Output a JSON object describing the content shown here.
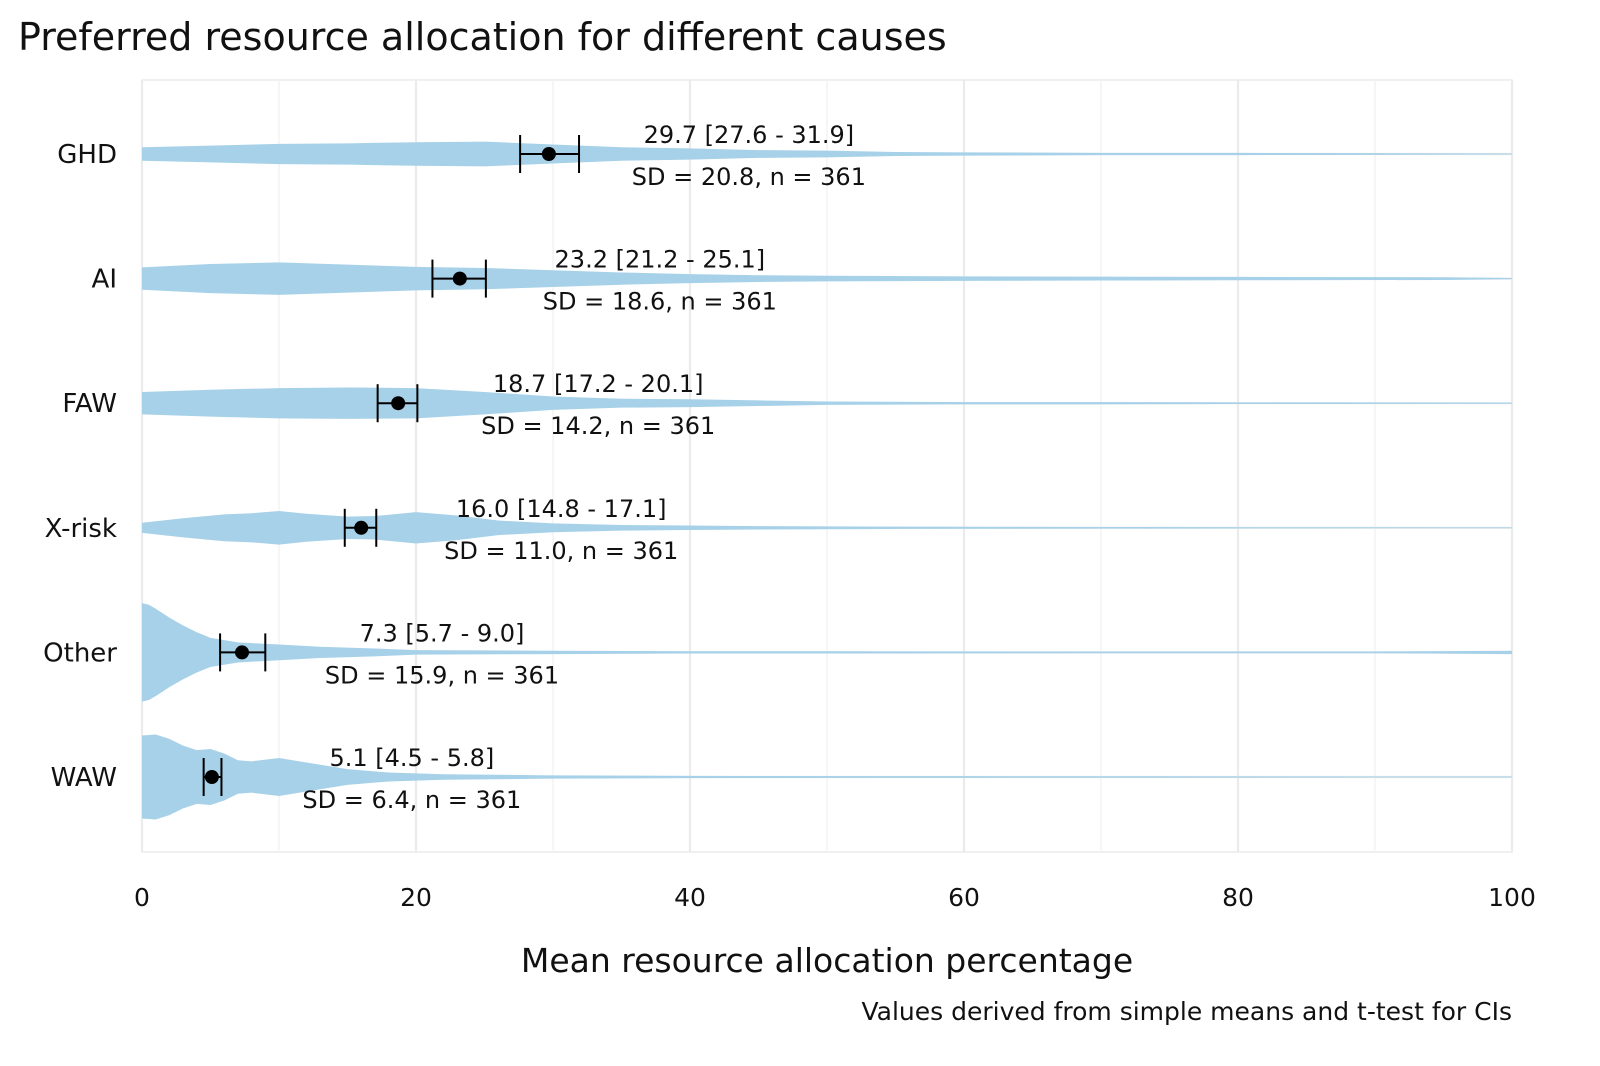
{
  "chart_data": {
    "type": "violin",
    "title": "Preferred resource allocation for different causes",
    "xlabel": "Mean resource allocation percentage",
    "ylabel": "",
    "caption": "Values derived from simple means and t-test for CIs",
    "xlim": [
      0,
      100
    ],
    "xticks": [
      0,
      20,
      40,
      60,
      80,
      100
    ],
    "grid": true,
    "colors": {
      "violin": "#a6d1e8",
      "point": "#000000",
      "grid": "#ebebeb"
    },
    "series": [
      {
        "name": "GHD",
        "mean": 29.7,
        "ci": [
          27.6,
          31.9
        ],
        "sd": 20.8,
        "n": 361,
        "label_ci": "29.7 [27.6 - 31.9]",
        "label_sd": "SD = 20.8, n = 361",
        "density": [
          [
            0,
            0.12
          ],
          [
            5,
            0.15
          ],
          [
            10,
            0.18
          ],
          [
            15,
            0.19
          ],
          [
            20,
            0.21
          ],
          [
            25,
            0.22
          ],
          [
            30,
            0.17
          ],
          [
            35,
            0.12
          ],
          [
            40,
            0.1
          ],
          [
            45,
            0.07
          ],
          [
            50,
            0.06
          ],
          [
            55,
            0.035
          ],
          [
            60,
            0.03
          ],
          [
            70,
            0.02
          ],
          [
            80,
            0.02
          ],
          [
            90,
            0.015
          ],
          [
            100,
            0.01
          ]
        ]
      },
      {
        "name": "AI",
        "mean": 23.2,
        "ci": [
          21.2,
          25.1
        ],
        "sd": 18.6,
        "n": 361,
        "label_ci": "23.2 [21.2 - 25.1]",
        "label_sd": "SD = 18.6, n = 361",
        "density": [
          [
            0,
            0.2
          ],
          [
            5,
            0.26
          ],
          [
            10,
            0.29
          ],
          [
            15,
            0.25
          ],
          [
            20,
            0.21
          ],
          [
            25,
            0.19
          ],
          [
            30,
            0.15
          ],
          [
            35,
            0.11
          ],
          [
            40,
            0.08
          ],
          [
            45,
            0.06
          ],
          [
            50,
            0.05
          ],
          [
            60,
            0.04
          ],
          [
            70,
            0.035
          ],
          [
            80,
            0.03
          ],
          [
            95,
            0.025
          ],
          [
            100,
            0.01
          ]
        ]
      },
      {
        "name": "FAW",
        "mean": 18.7,
        "ci": [
          17.2,
          20.1
        ],
        "sd": 14.2,
        "n": 361,
        "label_ci": "18.7 [17.2 - 20.1]",
        "label_sd": "SD = 14.2, n = 361",
        "density": [
          [
            0,
            0.2
          ],
          [
            5,
            0.24
          ],
          [
            10,
            0.27
          ],
          [
            15,
            0.28
          ],
          [
            20,
            0.27
          ],
          [
            25,
            0.2
          ],
          [
            30,
            0.12
          ],
          [
            35,
            0.08
          ],
          [
            40,
            0.07
          ],
          [
            45,
            0.05
          ],
          [
            50,
            0.03
          ],
          [
            60,
            0.02
          ],
          [
            70,
            0.02
          ],
          [
            80,
            0.015
          ],
          [
            100,
            0.01
          ]
        ]
      },
      {
        "name": "X-risk",
        "mean": 16.0,
        "ci": [
          14.8,
          17.1
        ],
        "sd": 11.0,
        "n": 361,
        "label_ci": "16.0 [14.8 - 17.1]",
        "label_sd": "SD = 11.0, n = 361",
        "density": [
          [
            0,
            0.09
          ],
          [
            3,
            0.17
          ],
          [
            6,
            0.24
          ],
          [
            8,
            0.26
          ],
          [
            10,
            0.3
          ],
          [
            12,
            0.25
          ],
          [
            15,
            0.2
          ],
          [
            17,
            0.21
          ],
          [
            20,
            0.28
          ],
          [
            23,
            0.22
          ],
          [
            26,
            0.13
          ],
          [
            30,
            0.08
          ],
          [
            35,
            0.05
          ],
          [
            40,
            0.04
          ],
          [
            45,
            0.03
          ],
          [
            55,
            0.02
          ],
          [
            70,
            0.015
          ],
          [
            85,
            0.01
          ],
          [
            100,
            0.008
          ]
        ]
      },
      {
        "name": "Other",
        "mean": 7.3,
        "ci": [
          5.7,
          9.0
        ],
        "sd": 15.9,
        "n": 361,
        "label_ci": "7.3 [5.7 - 9.0]",
        "label_sd": "SD = 15.9, n = 361",
        "density": [
          [
            0,
            0.88
          ],
          [
            0.5,
            0.85
          ],
          [
            1,
            0.78
          ],
          [
            2,
            0.62
          ],
          [
            3,
            0.48
          ],
          [
            4,
            0.36
          ],
          [
            5,
            0.26
          ],
          [
            7,
            0.18
          ],
          [
            10,
            0.14
          ],
          [
            13,
            0.1
          ],
          [
            17,
            0.07
          ],
          [
            20,
            0.04
          ],
          [
            30,
            0.03
          ],
          [
            40,
            0.02
          ],
          [
            50,
            0.02
          ],
          [
            70,
            0.015
          ],
          [
            90,
            0.015
          ],
          [
            100,
            0.03
          ]
        ]
      },
      {
        "name": "WAW",
        "mean": 5.1,
        "ci": [
          4.5,
          5.8
        ],
        "sd": 6.4,
        "n": 361,
        "label_ci": "5.1 [4.5 - 5.8]",
        "label_sd": "SD = 6.4, n = 361",
        "density": [
          [
            0,
            0.74
          ],
          [
            1,
            0.76
          ],
          [
            2,
            0.68
          ],
          [
            3,
            0.56
          ],
          [
            4,
            0.48
          ],
          [
            5,
            0.5
          ],
          [
            6,
            0.42
          ],
          [
            7,
            0.3
          ],
          [
            8,
            0.28
          ],
          [
            10,
            0.34
          ],
          [
            12,
            0.26
          ],
          [
            15,
            0.14
          ],
          [
            18,
            0.08
          ],
          [
            22,
            0.05
          ],
          [
            30,
            0.03
          ],
          [
            40,
            0.02
          ],
          [
            60,
            0.015
          ],
          [
            100,
            0.008
          ]
        ]
      }
    ]
  }
}
